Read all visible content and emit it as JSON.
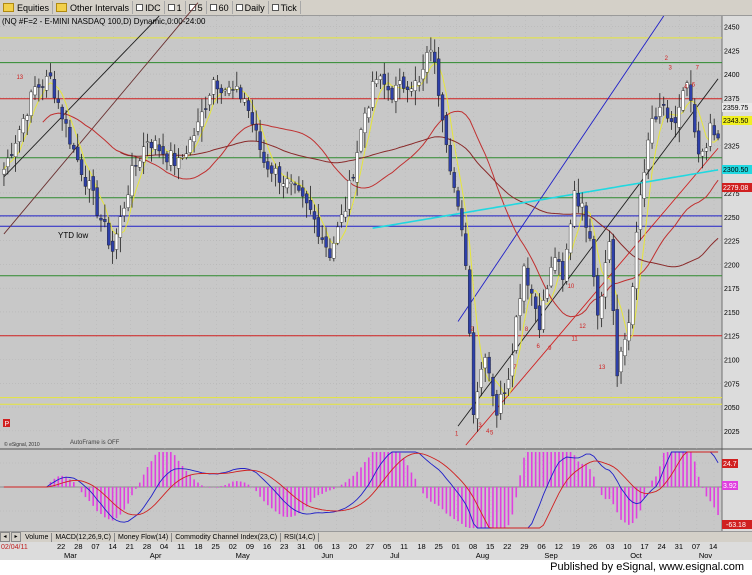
{
  "toolbar": {
    "items": [
      "Equities",
      "Other Intervals",
      "IDC",
      "1",
      "5",
      "60",
      "Daily",
      "Tick"
    ]
  },
  "chart_header": "(NQ #F=2 - E-MINI NASDAQ 100,D) Dynamic,0:00-24:00",
  "annotations": {
    "ytd_low": "YTD low",
    "esignal_small": "© eSignal, 2010",
    "autoframe": "AutoFrame is OFF",
    "p_marker": "P"
  },
  "price_badges": {
    "b1": "2359.75",
    "b2": "2343.50",
    "b3": "2300.50",
    "b4": "2279.08"
  },
  "osc_badges": {
    "o1": "24.7",
    "o2": "3.92",
    "o3": "-63.18"
  },
  "tabs": [
    "Volume",
    "MACD(12,26,9,C)",
    "Money Flow(14)",
    "Commodity Channel Index(23,C)",
    "RSI(14,C)"
  ],
  "footer_text": "Published by eSignal, www.esignal.com",
  "date_start_label": "02/04/11",
  "x_axis": {
    "day_labels": [
      "22",
      "28",
      "07",
      "14",
      "21",
      "28",
      "04",
      "11",
      "18",
      "25",
      "02",
      "09",
      "16",
      "23",
      "31",
      "06",
      "13",
      "20",
      "27",
      "05",
      "11",
      "18",
      "25",
      "01",
      "08",
      "15",
      "22",
      "29",
      "06",
      "12",
      "19",
      "26",
      "03",
      "10",
      "17",
      "24",
      "31",
      "07",
      "14"
    ],
    "month_labels": [
      "Mar",
      "Apr",
      "May",
      "Jun",
      "Jul",
      "Aug",
      "Sep",
      "Oct",
      "Nov"
    ]
  },
  "colors": {
    "background": "#c8c8c8",
    "candle_up": "#ffffff",
    "candle_down": "#2d3fa8",
    "yellow": "#e6e63a",
    "red": "#d02020",
    "blue": "#2020c8",
    "cyan": "#20d8e0",
    "green": "#2e8a2e",
    "magenta": "#e040e0"
  },
  "chart_data": {
    "type": "candlestick",
    "title": "(NQ #F=2 - E-MINI NASDAQ 100,D) Dynamic,0:00-24:00",
    "y_ticks": [
      2450,
      2425,
      2400,
      2375,
      2350,
      2325,
      2300,
      2275,
      2250,
      2225,
      2200,
      2175,
      2150,
      2125,
      2100,
      2075,
      2050,
      2025
    ],
    "ylim": [
      2007,
      2461
    ],
    "n_bars": 185,
    "close_path": [
      [
        0,
        2300
      ],
      [
        8,
        2385
      ],
      [
        12,
        2395
      ],
      [
        18,
        2320
      ],
      [
        22,
        2280
      ],
      [
        28,
        2215
      ],
      [
        33,
        2295
      ],
      [
        37,
        2332
      ],
      [
        45,
        2305
      ],
      [
        50,
        2345
      ],
      [
        54,
        2395
      ],
      [
        57,
        2385
      ],
      [
        62,
        2375
      ],
      [
        67,
        2308
      ],
      [
        73,
        2285
      ],
      [
        79,
        2255
      ],
      [
        84,
        2212
      ],
      [
        88,
        2260
      ],
      [
        93,
        2360
      ],
      [
        96,
        2395
      ],
      [
        100,
        2380
      ],
      [
        104,
        2392
      ],
      [
        107,
        2388
      ],
      [
        110,
        2430
      ],
      [
        113,
        2360
      ],
      [
        116,
        2280
      ],
      [
        119,
        2205
      ],
      [
        121,
        2050
      ],
      [
        124,
        2110
      ],
      [
        127,
        2045
      ],
      [
        130,
        2085
      ],
      [
        134,
        2200
      ],
      [
        138,
        2140
      ],
      [
        142,
        2210
      ],
      [
        144,
        2180
      ],
      [
        147,
        2280
      ],
      [
        151,
        2235
      ],
      [
        153,
        2150
      ],
      [
        156,
        2225
      ],
      [
        158,
        2082
      ],
      [
        161,
        2140
      ],
      [
        164,
        2270
      ],
      [
        167,
        2350
      ],
      [
        170,
        2360
      ],
      [
        173,
        2345
      ],
      [
        176,
        2390
      ],
      [
        179,
        2310
      ],
      [
        182,
        2340
      ],
      [
        184,
        2330
      ]
    ],
    "horizontal_levels": [
      {
        "y": 2438,
        "color": "yellow"
      },
      {
        "y": 2412,
        "color": "green"
      },
      {
        "y": 2374,
        "color": "red"
      },
      {
        "y": 2312,
        "color": "green"
      },
      {
        "y": 2270,
        "color": "green"
      },
      {
        "y": 2251,
        "color": "blue"
      },
      {
        "y": 2240,
        "color": "blue"
      },
      {
        "y": 2188,
        "color": "green"
      },
      {
        "y": 2125,
        "color": "red"
      },
      {
        "y": 2060,
        "color": "yellow"
      },
      {
        "y": 2053,
        "color": "yellow"
      }
    ],
    "labels": [
      {
        "bar": 4,
        "y": 2395,
        "text": "13"
      },
      {
        "bar": 117,
        "y": 2020,
        "text": "1"
      },
      {
        "bar": 121,
        "y": 2130,
        "text": "2"
      },
      {
        "bar": 123,
        "y": 2029,
        "text": "3"
      },
      {
        "bar": 125,
        "y": 2023,
        "text": "4"
      },
      {
        "bar": 126,
        "y": 2021,
        "text": "5"
      },
      {
        "bar": 132,
        "y": 2090,
        "text": "7"
      },
      {
        "bar": 135,
        "y": 2130,
        "text": "8"
      },
      {
        "bar": 138,
        "y": 2112,
        "text": "6"
      },
      {
        "bar": 141,
        "y": 2110,
        "text": "9"
      },
      {
        "bar": 146,
        "y": 2175,
        "text": "10"
      },
      {
        "bar": 149,
        "y": 2133,
        "text": "12"
      },
      {
        "bar": 147,
        "y": 2120,
        "text": "11"
      },
      {
        "bar": 154,
        "y": 2090,
        "text": "13"
      },
      {
        "bar": 171,
        "y": 2415,
        "text": "2"
      },
      {
        "bar": 172,
        "y": 2405,
        "text": "3"
      },
      {
        "bar": 176,
        "y": 2385,
        "text": "4"
      },
      {
        "bar": 178,
        "y": 2387,
        "text": "6"
      },
      {
        "bar": 179,
        "y": 2405,
        "text": "7"
      }
    ]
  }
}
